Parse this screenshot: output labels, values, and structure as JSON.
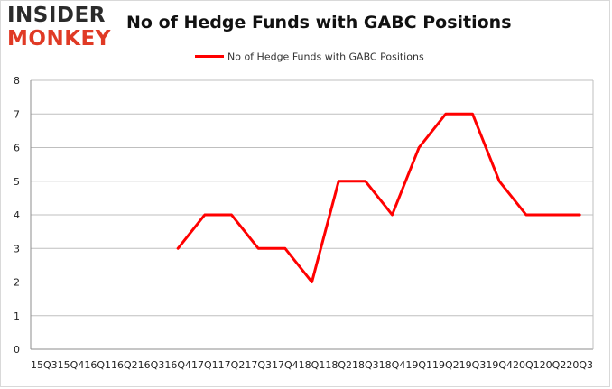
{
  "logo": {
    "line1": "INSIDER",
    "line2": "MONKEY"
  },
  "colors": {
    "series": "#ff0000",
    "grid": "#bfbfbf"
  },
  "chart_data": {
    "type": "line",
    "title": "No of Hedge Funds with GABC Positions",
    "xlabel": "",
    "ylabel": "",
    "ylim": [
      0,
      8
    ],
    "yticks": [
      0,
      1,
      2,
      3,
      4,
      5,
      6,
      7,
      8
    ],
    "grid": true,
    "legend": "top-center",
    "categories": [
      "15Q3",
      "15Q4",
      "16Q1",
      "16Q2",
      "16Q3",
      "16Q4",
      "17Q1",
      "17Q2",
      "17Q3",
      "17Q4",
      "18Q1",
      "18Q2",
      "18Q3",
      "18Q4",
      "19Q1",
      "19Q2",
      "19Q3",
      "19Q4",
      "20Q1",
      "20Q2",
      "20Q3"
    ],
    "series": [
      {
        "name": "No of Hedge Funds with GABC Positions",
        "values": [
          null,
          null,
          null,
          null,
          null,
          3,
          4,
          4,
          3,
          3,
          2,
          5,
          5,
          4,
          6,
          7,
          7,
          5,
          4,
          4,
          4
        ]
      }
    ]
  }
}
